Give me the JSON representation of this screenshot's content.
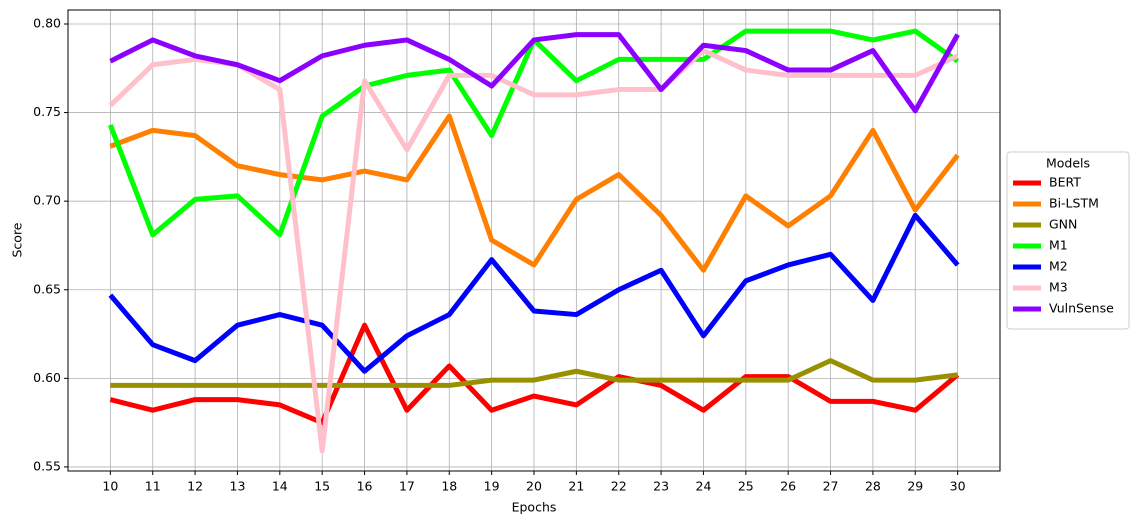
{
  "chart_data": {
    "type": "line",
    "x_label": "Epochs",
    "y_label": "Score",
    "x": [
      10,
      11,
      12,
      13,
      14,
      15,
      16,
      17,
      18,
      19,
      20,
      21,
      22,
      23,
      24,
      25,
      26,
      27,
      28,
      29,
      30
    ],
    "xlim": [
      9,
      31
    ],
    "xticks": [
      10,
      11,
      12,
      13,
      14,
      15,
      16,
      17,
      18,
      19,
      20,
      21,
      22,
      23,
      24,
      25,
      26,
      27,
      28,
      29,
      30
    ],
    "ylim": [
      0.5477,
      0.8079
    ],
    "yticks": [
      0.55,
      {
        "value": 0.6,
        "label": "0.60"
      },
      0.65,
      {
        "value": 0.7,
        "label": "0.70"
      },
      0.75,
      {
        "value": 0.8,
        "label": "0.80"
      }
    ],
    "grid": true,
    "legend_title": "Models",
    "legend_position": "center-right-outside",
    "series": [
      {
        "name": "BERT",
        "color": "#ff0000",
        "values": [
          0.588,
          0.582,
          0.588,
          0.588,
          0.585,
          0.575,
          0.63,
          0.582,
          0.607,
          0.582,
          0.59,
          0.585,
          0.601,
          0.596,
          0.582,
          0.601,
          0.601,
          0.587,
          0.587,
          0.582,
          0.602
        ]
      },
      {
        "name": "Bi-LSTM",
        "color": "#ff7f00",
        "values": [
          0.731,
          0.74,
          0.737,
          0.72,
          0.715,
          0.712,
          0.717,
          0.712,
          0.748,
          0.678,
          0.664,
          0.701,
          0.715,
          0.692,
          0.661,
          0.703,
          0.686,
          0.703,
          0.74,
          0.695,
          0.726
        ]
      },
      {
        "name": "GNN",
        "color": "#999000",
        "values": [
          0.596,
          0.596,
          0.596,
          0.596,
          0.596,
          0.596,
          0.596,
          0.596,
          0.596,
          0.599,
          0.599,
          0.604,
          0.599,
          0.599,
          0.599,
          0.599,
          0.599,
          0.61,
          0.599,
          0.599,
          0.602
        ]
      },
      {
        "name": "M1",
        "color": "#00ff00",
        "values": [
          0.743,
          0.681,
          0.701,
          0.703,
          0.681,
          0.748,
          0.765,
          0.771,
          0.774,
          0.737,
          0.791,
          0.768,
          0.78,
          0.78,
          0.78,
          0.796,
          0.796,
          0.796,
          0.791,
          0.796,
          0.779
        ]
      },
      {
        "name": "M2",
        "color": "#0000ff",
        "values": [
          0.647,
          0.619,
          0.61,
          0.63,
          0.636,
          0.63,
          0.604,
          0.624,
          0.636,
          0.667,
          0.638,
          0.636,
          0.65,
          0.661,
          0.624,
          0.655,
          0.664,
          0.67,
          0.644,
          0.692,
          0.664
        ]
      },
      {
        "name": "M3",
        "color": "#ffc0cb",
        "values": [
          0.754,
          0.777,
          0.78,
          0.777,
          0.763,
          0.559,
          0.768,
          0.729,
          0.771,
          0.771,
          0.76,
          0.76,
          0.763,
          0.763,
          0.785,
          0.774,
          0.771,
          0.771,
          0.771,
          0.771,
          0.782
        ]
      },
      {
        "name": "VulnSense",
        "color": "#8b00ff",
        "values": [
          0.779,
          0.791,
          0.782,
          0.777,
          0.768,
          0.782,
          0.788,
          0.791,
          0.78,
          0.765,
          0.791,
          0.794,
          0.794,
          0.763,
          0.788,
          0.785,
          0.774,
          0.774,
          0.785,
          0.751,
          0.794
        ]
      }
    ]
  }
}
